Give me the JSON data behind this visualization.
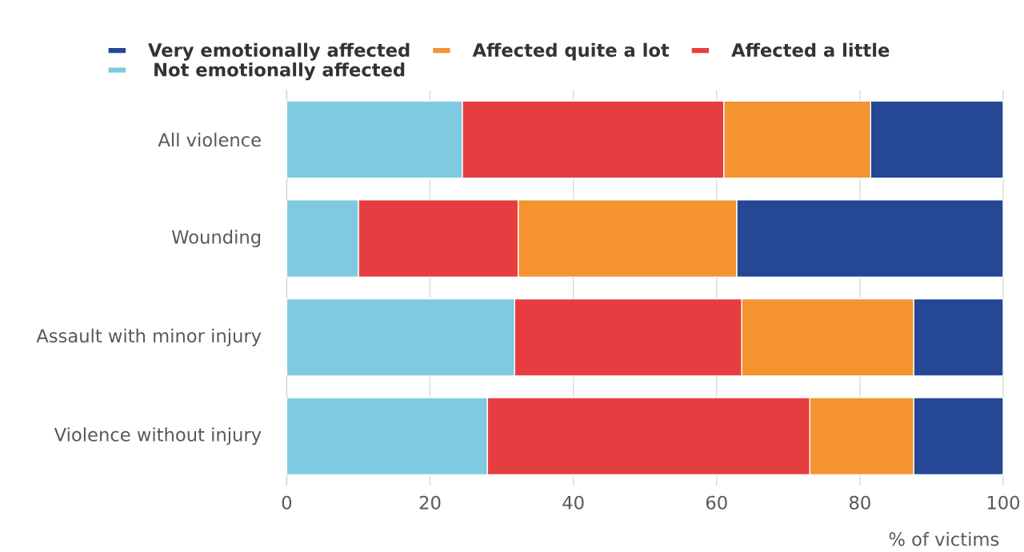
{
  "chart_data": {
    "type": "bar",
    "orientation": "horizontal",
    "stacked": true,
    "xlabel": "% of victims",
    "categories": [
      "All violence",
      "Wounding",
      "Assault with minor injury",
      "Violence without injury"
    ],
    "series": [
      {
        "name": "Not emotionally affected",
        "color": "#7ecae1",
        "values": [
          24.5,
          10,
          31.8,
          28
        ]
      },
      {
        "name": "Affected a little",
        "color": "#e63e40",
        "values": [
          36.5,
          22.3,
          31.7,
          45
        ]
      },
      {
        "name": "Affected quite a lot",
        "color": "#f4932f",
        "values": [
          20.5,
          30.5,
          24,
          14.5
        ]
      },
      {
        "name": "Very emotionally affected",
        "color": "#264796",
        "values": [
          18.5,
          37.2,
          12.5,
          12.5
        ]
      }
    ],
    "xlim": [
      0,
      100
    ],
    "xticks": [
      0,
      20,
      40,
      60,
      80,
      100
    ],
    "grid": "x",
    "legend": "top"
  }
}
